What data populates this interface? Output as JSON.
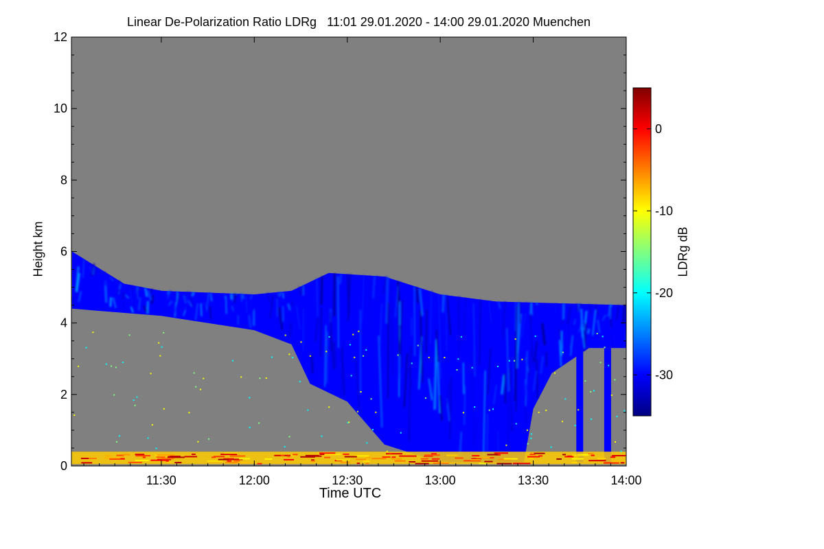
{
  "chart_data": {
    "type": "heatmap",
    "title": "Linear De-Polarization Ratio LDRg   11:01 29.01.2020 - 14:00 29.01.2020 Muenchen",
    "xlabel": "Time UTC",
    "ylabel": "Height km",
    "colorbar_label": "LDRg dB",
    "x_range": [
      "11:01",
      "14:00"
    ],
    "x_ticks": [
      "11:30",
      "12:00",
      "12:30",
      "13:00",
      "13:30",
      "14:00"
    ],
    "ylim": [
      0,
      12
    ],
    "y_ticks": [
      0,
      2,
      4,
      6,
      8,
      10,
      12
    ],
    "colorbar_range": [
      -35,
      5
    ],
    "colorbar_ticks": [
      0,
      -10,
      -20,
      -30
    ],
    "background_color": "#808080",
    "colormap": [
      "#000080",
      "#0000ff",
      "#0080ff",
      "#00ffff",
      "#80ff80",
      "#ffff00",
      "#ff8000",
      "#ff0000",
      "#800000"
    ],
    "features": {
      "cloud_layer": {
        "dominant_ldr_db": -30,
        "top_km": [
          [
            11.02,
            6.0
          ],
          [
            11.3,
            5.1
          ],
          [
            11.5,
            4.9
          ],
          [
            12.0,
            4.8
          ],
          [
            12.2,
            4.9
          ],
          [
            12.4,
            5.4
          ],
          [
            12.7,
            5.3
          ],
          [
            13.0,
            4.8
          ],
          [
            13.3,
            4.6
          ],
          [
            14.0,
            4.5
          ]
        ],
        "base_km": [
          [
            11.02,
            4.4
          ],
          [
            11.5,
            4.2
          ],
          [
            12.0,
            3.8
          ],
          [
            12.2,
            3.4
          ],
          [
            12.3,
            2.3
          ],
          [
            12.5,
            1.8
          ],
          [
            12.7,
            0.6
          ],
          [
            13.0,
            0.1
          ],
          [
            13.45,
            0.1
          ],
          [
            13.5,
            1.6
          ],
          [
            13.6,
            2.6
          ],
          [
            13.8,
            3.3
          ],
          [
            14.0,
            3.3
          ]
        ]
      },
      "fall_streaks": [
        [
          13.75,
          0.1,
          3.3
        ],
        [
          13.9,
          0.1,
          3.3
        ]
      ],
      "near_ground_layer": {
        "top_km": 0.4,
        "dominant_ldr_db": -3
      },
      "scattered_pixels_ldr_db": [
        -10,
        -15,
        -20
      ]
    }
  }
}
